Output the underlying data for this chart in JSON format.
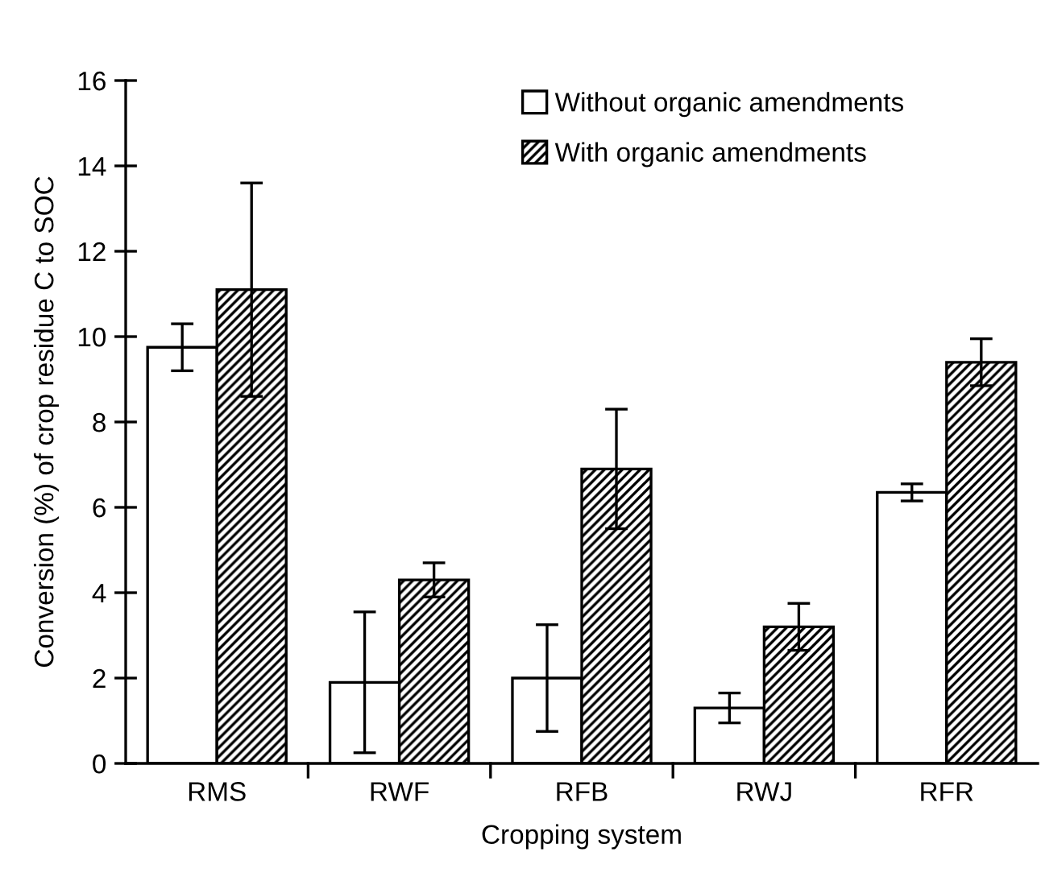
{
  "chart_data": {
    "type": "bar",
    "xlabel": "Cropping system",
    "ylabel": "Conversion (%) of crop residue C to SOC",
    "categories": [
      "RMS",
      "RWF",
      "RFB",
      "RWJ",
      "RFR"
    ],
    "series": [
      {
        "name": "Without organic amendments",
        "color": "#ffffff",
        "values": [
          9.75,
          1.9,
          2.0,
          1.3,
          6.35
        ],
        "errors": [
          0.55,
          1.65,
          1.25,
          0.35,
          0.2
        ]
      },
      {
        "name": "With organic amendments",
        "color": "#000000",
        "values": [
          11.1,
          4.3,
          6.9,
          3.2,
          9.4
        ],
        "errors": [
          2.5,
          0.4,
          1.4,
          0.55,
          0.55
        ]
      }
    ],
    "ylim": [
      0,
      16
    ],
    "yticks": [
      0,
      2,
      4,
      6,
      8,
      10,
      12,
      14,
      16
    ],
    "grid": false,
    "legend": "top right"
  }
}
